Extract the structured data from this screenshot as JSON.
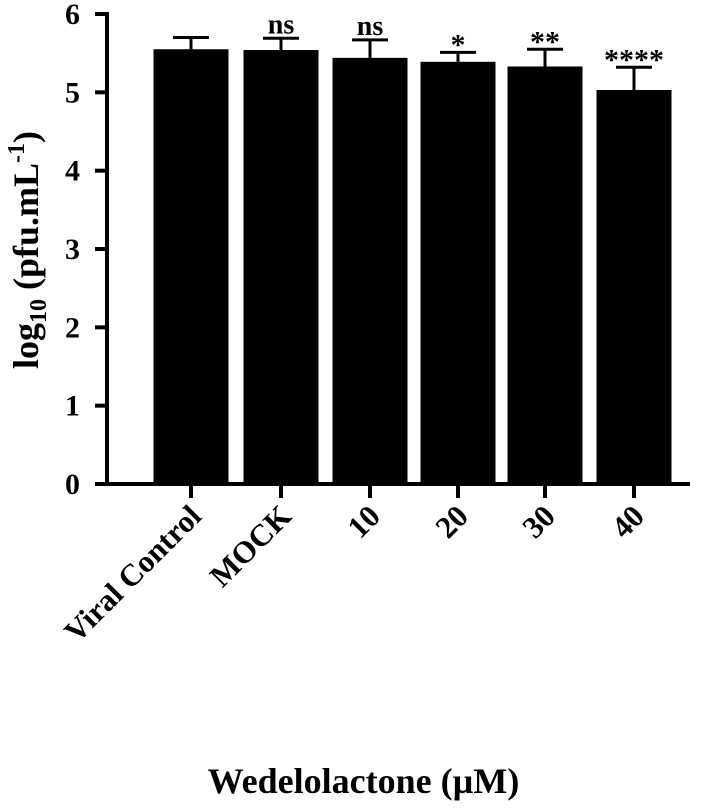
{
  "chart_data": {
    "type": "bar",
    "categories": [
      "Viral Control",
      "MOCK",
      "10",
      "20",
      "30",
      "40"
    ],
    "values": [
      5.55,
      5.54,
      5.44,
      5.39,
      5.33,
      5.03
    ],
    "error_upper": [
      5.7,
      5.69,
      5.67,
      5.51,
      5.55,
      5.32
    ],
    "significance": [
      "",
      "ns",
      "ns",
      "*",
      "**",
      "****"
    ],
    "ylabel_prefix": "log",
    "ylabel_sub": "10",
    "ylabel_main": " (pfu.mL",
    "ylabel_sup": "-1",
    "ylabel_close": ")",
    "xlabel": "Wedelolactone (µM)",
    "ylim": [
      0,
      6
    ],
    "yticks": [
      "0",
      "1",
      "2",
      "3",
      "4",
      "5",
      "6"
    ],
    "bar_color": "#000000",
    "grid": false
  }
}
